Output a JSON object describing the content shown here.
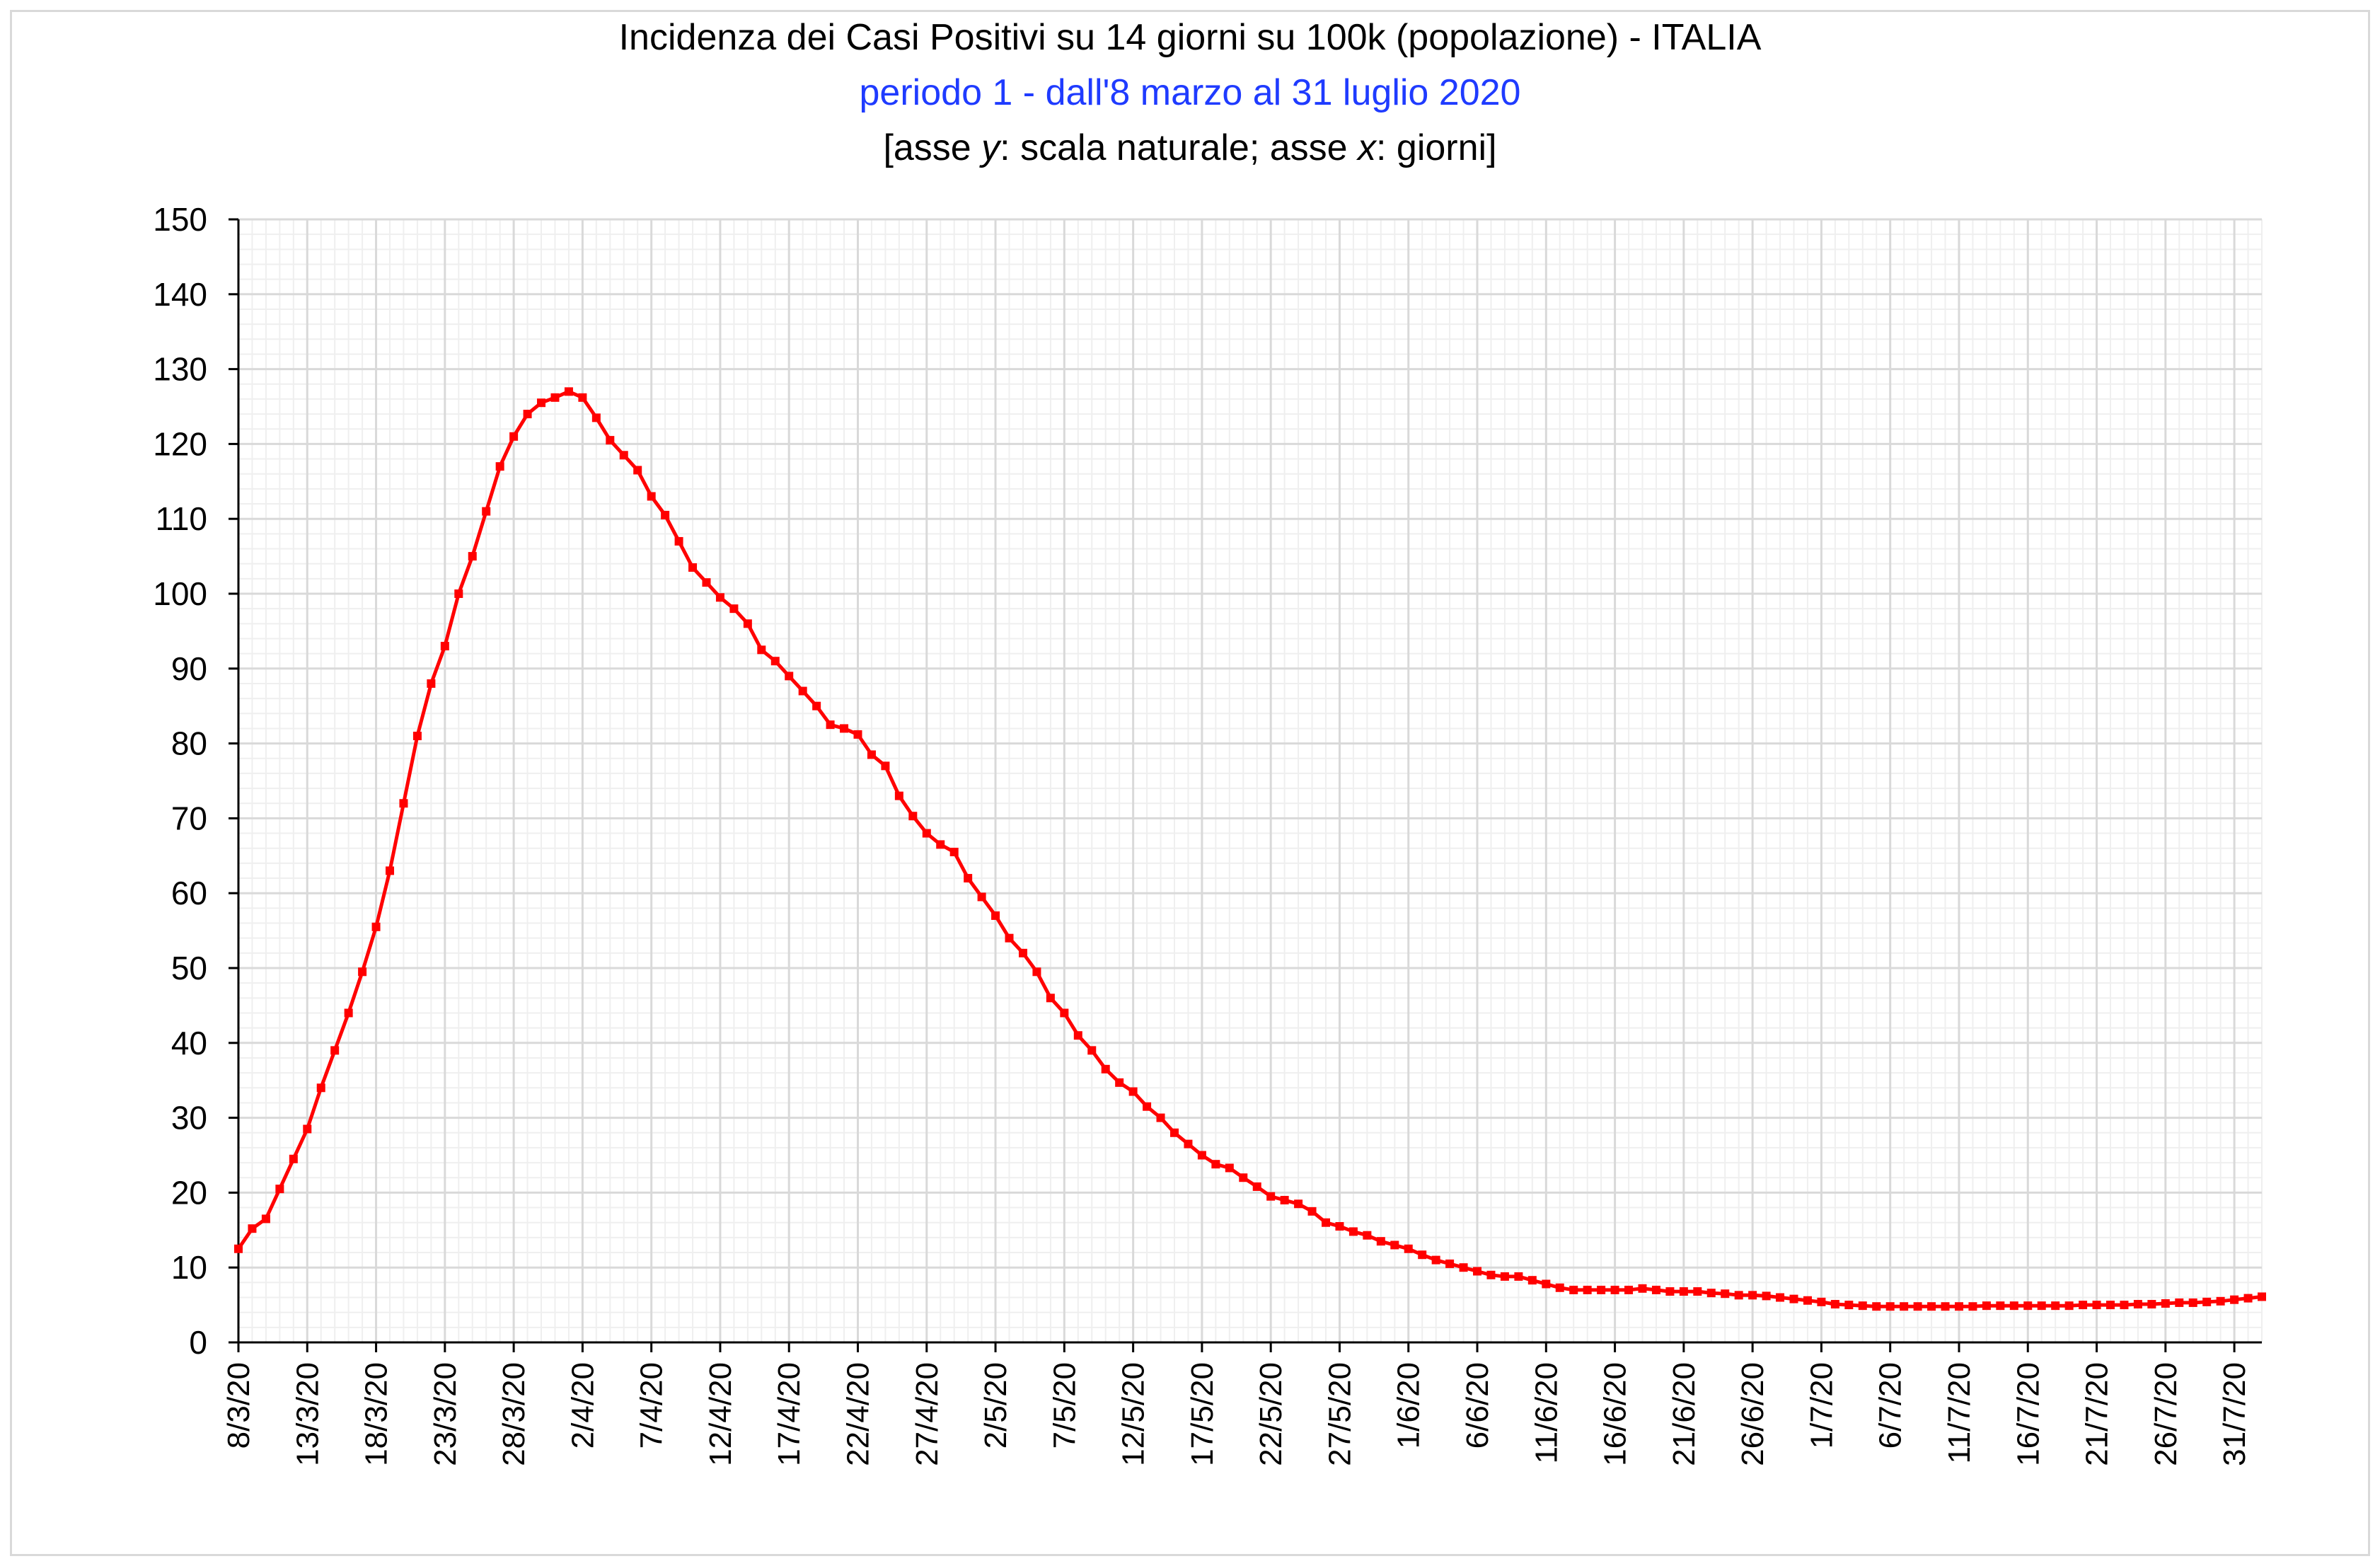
{
  "colors": {
    "series": "#ff0000",
    "subtitle": "#1f3bff",
    "grid_major": "#d9d9d9",
    "grid_minor": "#efefef",
    "axis": "#000000"
  },
  "chart_data": {
    "type": "line",
    "title": "Incidenza dei Casi Positivi su 14 giorni su 100k (popolazione) - ITALIA",
    "subtitle": "periodo 1 - dall'8 marzo al 31 luglio 2020",
    "subtitle2_parts": [
      "[asse ",
      "y",
      ": scala naturale; asse ",
      "x",
      ": giorni]"
    ],
    "xlabel": "",
    "ylabel": "",
    "ylim": [
      0,
      150
    ],
    "y_ticks": [
      0,
      10,
      20,
      30,
      40,
      50,
      60,
      70,
      80,
      90,
      100,
      110,
      120,
      130,
      140,
      150
    ],
    "x_start": "8/3/20",
    "x_end": "31/7/20",
    "x_tick_labels": [
      "8/3/20",
      "13/3/20",
      "18/3/20",
      "23/3/20",
      "28/3/20",
      "2/4/20",
      "7/4/20",
      "12/4/20",
      "17/4/20",
      "22/4/20",
      "27/4/20",
      "2/5/20",
      "7/5/20",
      "12/5/20",
      "17/5/20",
      "22/5/20",
      "27/5/20",
      "1/6/20",
      "6/6/20",
      "11/6/20",
      "16/6/20",
      "21/6/20",
      "26/6/20",
      "1/7/20",
      "6/7/20",
      "11/7/20",
      "16/7/20",
      "21/7/20",
      "26/7/20",
      "31/7/20"
    ],
    "grid": true,
    "legend": "none",
    "series": [
      {
        "values": [
          12.5,
          15.2,
          16.5,
          20.5,
          24.5,
          28.5,
          34,
          39,
          44,
          49.5,
          55.5,
          63,
          72,
          81,
          88,
          93,
          100,
          105,
          111,
          117,
          121,
          124,
          125.5,
          126.2,
          127,
          126.2,
          123.5,
          120.5,
          118.5,
          116.5,
          113,
          110.5,
          107,
          103.5,
          101.5,
          99.5,
          98,
          96,
          92.5,
          91,
          89,
          87,
          85,
          82.5,
          82,
          81.2,
          78.5,
          77,
          73,
          70.3,
          68,
          66.5,
          65.5,
          62,
          59.5,
          57,
          54,
          52,
          49.5,
          46,
          44,
          41,
          39,
          36.5,
          34.7,
          33.5,
          31.5,
          30,
          28,
          26.5,
          25,
          23.8,
          23.3,
          22,
          20.8,
          19.5,
          19,
          18.5,
          17.5,
          16,
          15.5,
          14.8,
          14.3,
          13.5,
          13,
          12.5,
          11.7,
          11,
          10.5,
          10,
          9.5,
          9,
          8.8,
          8.8,
          8.3,
          7.8,
          7.3,
          7,
          7,
          7,
          7,
          7,
          7.2,
          7,
          6.8,
          6.8,
          6.8,
          6.6,
          6.5,
          6.3,
          6.3,
          6.2,
          6,
          5.8,
          5.6,
          5.4,
          5.1,
          5,
          4.9,
          4.8,
          4.8,
          4.8,
          4.8,
          4.8,
          4.8,
          4.8,
          4.8,
          4.9,
          4.9,
          4.9,
          4.9,
          4.9,
          4.9,
          4.9,
          5,
          5,
          5,
          5,
          5.1,
          5.1,
          5.2,
          5.3,
          5.3,
          5.4,
          5.5,
          5.7,
          5.9,
          6.1
        ]
      }
    ]
  }
}
